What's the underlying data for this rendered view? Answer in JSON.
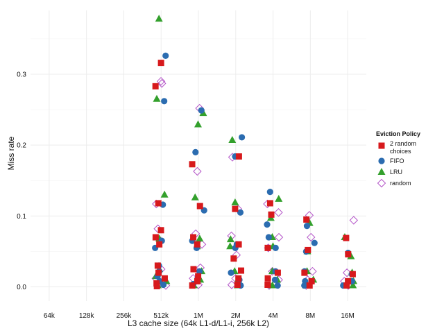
{
  "chart_data": {
    "type": "scatter",
    "title": "",
    "xlabel": "L3 cache size (64k L1-d/L1-i, 256k L2)",
    "ylabel": "Miss rate",
    "categories": [
      "64k",
      "128k",
      "256k",
      "512k",
      "1M",
      "2M",
      "4M",
      "8M",
      "16M"
    ],
    "ylim": [
      -0.02,
      0.39
    ],
    "yticks": [
      0.0,
      0.1,
      0.2,
      0.3
    ],
    "ytick_labels": [
      "0.0",
      "0.1",
      "0.2",
      "0.3"
    ],
    "grid": true,
    "legend": {
      "title": "Eviction Policy",
      "position": "right",
      "entries": [
        {
          "name": "2 random choices",
          "lines": [
            "2 random",
            "choices"
          ],
          "shape": "square",
          "color": "#d7191c"
        },
        {
          "name": "FIFO",
          "lines": [
            "FIFO"
          ],
          "shape": "circle",
          "color": "#2b6cb0"
        },
        {
          "name": "LRU",
          "lines": [
            "LRU"
          ],
          "shape": "triangle",
          "color": "#33a02c"
        },
        {
          "name": "random",
          "lines": [
            "random"
          ],
          "shape": "diamond",
          "color": "#b455c8"
        }
      ]
    },
    "series": [
      {
        "name": "2 random choices",
        "points": [
          {
            "x": "512k",
            "y": 0.316
          },
          {
            "x": "512k",
            "y": 0.283
          },
          {
            "x": "512k",
            "y": 0.118
          },
          {
            "x": "512k",
            "y": 0.08
          },
          {
            "x": "512k",
            "y": 0.07
          },
          {
            "x": "512k",
            "y": 0.06
          },
          {
            "x": "512k",
            "y": 0.03
          },
          {
            "x": "512k",
            "y": 0.02
          },
          {
            "x": "512k",
            "y": 0.012
          },
          {
            "x": "512k",
            "y": 0.005
          },
          {
            "x": "512k",
            "y": 0.001
          },
          {
            "x": "1M",
            "y": 0.173
          },
          {
            "x": "1M",
            "y": 0.114
          },
          {
            "x": "1M",
            "y": 0.07
          },
          {
            "x": "1M",
            "y": 0.06
          },
          {
            "x": "1M",
            "y": 0.025
          },
          {
            "x": "1M",
            "y": 0.015
          },
          {
            "x": "1M",
            "y": 0.008
          },
          {
            "x": "1M",
            "y": 0.002
          },
          {
            "x": "2M",
            "y": 0.184
          },
          {
            "x": "2M",
            "y": 0.11
          },
          {
            "x": "2M",
            "y": 0.06
          },
          {
            "x": "2M",
            "y": 0.04
          },
          {
            "x": "2M",
            "y": 0.023
          },
          {
            "x": "2M",
            "y": 0.012
          },
          {
            "x": "2M",
            "y": 0.003
          },
          {
            "x": "4M",
            "y": 0.118
          },
          {
            "x": "4M",
            "y": 0.102
          },
          {
            "x": "4M",
            "y": 0.055
          },
          {
            "x": "4M",
            "y": 0.02
          },
          {
            "x": "4M",
            "y": 0.012
          },
          {
            "x": "4M",
            "y": 0.003
          },
          {
            "x": "8M",
            "y": 0.095
          },
          {
            "x": "8M",
            "y": 0.052
          },
          {
            "x": "8M",
            "y": 0.02
          },
          {
            "x": "8M",
            "y": 0.008
          },
          {
            "x": "8M",
            "y": 0.002
          },
          {
            "x": "16M",
            "y": 0.069
          },
          {
            "x": "16M",
            "y": 0.046
          },
          {
            "x": "16M",
            "y": 0.018
          },
          {
            "x": "16M",
            "y": 0.008
          },
          {
            "x": "16M",
            "y": 0.002
          }
        ]
      },
      {
        "name": "FIFO",
        "points": [
          {
            "x": "512k",
            "y": 0.326
          },
          {
            "x": "512k",
            "y": 0.262
          },
          {
            "x": "512k",
            "y": 0.116
          },
          {
            "x": "512k",
            "y": 0.065
          },
          {
            "x": "512k",
            "y": 0.055
          },
          {
            "x": "512k",
            "y": 0.03
          },
          {
            "x": "512k",
            "y": 0.022
          },
          {
            "x": "512k",
            "y": 0.015
          },
          {
            "x": "512k",
            "y": 0.008
          },
          {
            "x": "512k",
            "y": 0.003
          },
          {
            "x": "1M",
            "y": 0.249
          },
          {
            "x": "1M",
            "y": 0.19
          },
          {
            "x": "1M",
            "y": 0.108
          },
          {
            "x": "1M",
            "y": 0.065
          },
          {
            "x": "1M",
            "y": 0.055
          },
          {
            "x": "1M",
            "y": 0.022
          },
          {
            "x": "1M",
            "y": 0.012
          },
          {
            "x": "1M",
            "y": 0.004
          },
          {
            "x": "2M",
            "y": 0.211
          },
          {
            "x": "2M",
            "y": 0.184
          },
          {
            "x": "2M",
            "y": 0.105
          },
          {
            "x": "2M",
            "y": 0.06
          },
          {
            "x": "2M",
            "y": 0.055
          },
          {
            "x": "2M",
            "y": 0.02
          },
          {
            "x": "2M",
            "y": 0.01
          },
          {
            "x": "2M",
            "y": 0.002
          },
          {
            "x": "4M",
            "y": 0.134
          },
          {
            "x": "4M",
            "y": 0.088
          },
          {
            "x": "4M",
            "y": 0.07
          },
          {
            "x": "4M",
            "y": 0.055
          },
          {
            "x": "4M",
            "y": 0.022
          },
          {
            "x": "4M",
            "y": 0.01
          },
          {
            "x": "4M",
            "y": 0.002
          },
          {
            "x": "8M",
            "y": 0.086
          },
          {
            "x": "8M",
            "y": 0.062
          },
          {
            "x": "8M",
            "y": 0.05
          },
          {
            "x": "8M",
            "y": 0.022
          },
          {
            "x": "8M",
            "y": 0.008
          },
          {
            "x": "8M",
            "y": 0.002
          },
          {
            "x": "16M",
            "y": 0.048
          },
          {
            "x": "16M",
            "y": 0.018
          },
          {
            "x": "16M",
            "y": 0.008
          },
          {
            "x": "16M",
            "y": 0.002
          }
        ]
      },
      {
        "name": "LRU",
        "points": [
          {
            "x": "512k",
            "y": 0.378
          },
          {
            "x": "512k",
            "y": 0.265
          },
          {
            "x": "512k",
            "y": 0.13
          },
          {
            "x": "512k",
            "y": 0.068
          },
          {
            "x": "512k",
            "y": 0.025
          },
          {
            "x": "512k",
            "y": 0.015
          },
          {
            "x": "512k",
            "y": 0.008
          },
          {
            "x": "512k",
            "y": 0.002
          },
          {
            "x": "1M",
            "y": 0.245
          },
          {
            "x": "1M",
            "y": 0.229
          },
          {
            "x": "1M",
            "y": 0.126
          },
          {
            "x": "1M",
            "y": 0.068
          },
          {
            "x": "1M",
            "y": 0.057
          },
          {
            "x": "1M",
            "y": 0.022
          },
          {
            "x": "1M",
            "y": 0.01
          },
          {
            "x": "1M",
            "y": 0.002
          },
          {
            "x": "2M",
            "y": 0.207
          },
          {
            "x": "2M",
            "y": 0.119
          },
          {
            "x": "2M",
            "y": 0.067
          },
          {
            "x": "2M",
            "y": 0.057
          },
          {
            "x": "2M",
            "y": 0.022
          },
          {
            "x": "2M",
            "y": 0.01
          },
          {
            "x": "2M",
            "y": 0.002
          },
          {
            "x": "4M",
            "y": 0.124
          },
          {
            "x": "4M",
            "y": 0.097
          },
          {
            "x": "4M",
            "y": 0.07
          },
          {
            "x": "4M",
            "y": 0.057
          },
          {
            "x": "4M",
            "y": 0.022
          },
          {
            "x": "4M",
            "y": 0.01
          },
          {
            "x": "4M",
            "y": 0.002
          },
          {
            "x": "8M",
            "y": 0.09
          },
          {
            "x": "8M",
            "y": 0.05
          },
          {
            "x": "8M",
            "y": 0.022
          },
          {
            "x": "8M",
            "y": 0.01
          },
          {
            "x": "8M",
            "y": 0.002
          },
          {
            "x": "16M",
            "y": 0.07
          },
          {
            "x": "16M",
            "y": 0.043
          },
          {
            "x": "16M",
            "y": 0.02
          },
          {
            "x": "16M",
            "y": 0.008
          },
          {
            "x": "16M",
            "y": 0.002
          }
        ]
      },
      {
        "name": "random",
        "points": [
          {
            "x": "512k",
            "y": 0.29
          },
          {
            "x": "512k",
            "y": 0.287
          },
          {
            "x": "512k",
            "y": 0.117
          },
          {
            "x": "512k",
            "y": 0.082
          },
          {
            "x": "512k",
            "y": 0.065
          },
          {
            "x": "512k",
            "y": 0.025
          },
          {
            "x": "512k",
            "y": 0.012
          },
          {
            "x": "512k",
            "y": 0.002
          },
          {
            "x": "1M",
            "y": 0.252
          },
          {
            "x": "1M",
            "y": 0.163
          },
          {
            "x": "1M",
            "y": 0.075
          },
          {
            "x": "1M",
            "y": 0.06
          },
          {
            "x": "1M",
            "y": 0.027
          },
          {
            "x": "1M",
            "y": 0.012
          },
          {
            "x": "1M",
            "y": 0.003
          },
          {
            "x": "2M",
            "y": 0.183
          },
          {
            "x": "2M",
            "y": 0.11
          },
          {
            "x": "2M",
            "y": 0.072
          },
          {
            "x": "2M",
            "y": 0.045
          },
          {
            "x": "2M",
            "y": 0.012
          },
          {
            "x": "2M",
            "y": 0.003
          },
          {
            "x": "4M",
            "y": 0.117
          },
          {
            "x": "4M",
            "y": 0.105
          },
          {
            "x": "4M",
            "y": 0.07
          },
          {
            "x": "4M",
            "y": 0.055
          },
          {
            "x": "4M",
            "y": 0.022
          },
          {
            "x": "4M",
            "y": 0.01
          },
          {
            "x": "4M",
            "y": 0.002
          },
          {
            "x": "8M",
            "y": 0.101
          },
          {
            "x": "8M",
            "y": 0.07
          },
          {
            "x": "8M",
            "y": 0.022
          },
          {
            "x": "8M",
            "y": 0.01
          },
          {
            "x": "8M",
            "y": 0.002
          },
          {
            "x": "16M",
            "y": 0.094
          },
          {
            "x": "16M",
            "y": 0.02
          },
          {
            "x": "16M",
            "y": 0.008
          },
          {
            "x": "16M",
            "y": 0.002
          }
        ]
      }
    ]
  }
}
